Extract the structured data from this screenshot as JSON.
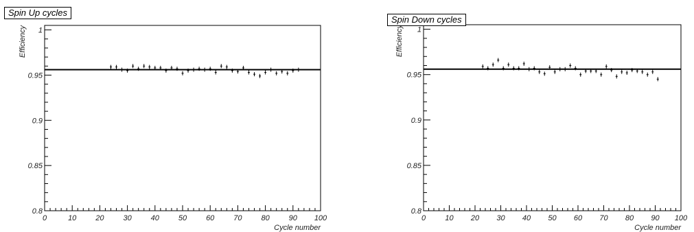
{
  "chart_data": [
    {
      "type": "scatter",
      "title": "Spin Up cycles",
      "xlabel": "Cycle number",
      "ylabel": "Efficiency",
      "xlim": [
        0,
        100
      ],
      "ylim": [
        0.8,
        1.005
      ],
      "xticks": [
        "0",
        "10",
        "20",
        "30",
        "40",
        "50",
        "60",
        "70",
        "80",
        "90",
        "100"
      ],
      "yticks": [
        "0.8",
        "0.85",
        "0.9",
        "0.95",
        "1"
      ],
      "fit_line": 0.956,
      "series": [
        {
          "x": [
            24,
            26,
            28,
            30,
            32,
            34,
            36,
            38,
            40,
            42,
            44,
            46,
            48,
            50,
            52,
            54,
            56,
            58,
            60,
            62,
            64,
            66,
            68,
            70,
            72,
            74,
            76,
            78,
            80,
            82,
            84,
            86,
            88,
            90,
            92
          ],
          "y": [
            0.959,
            0.959,
            0.956,
            0.955,
            0.96,
            0.957,
            0.96,
            0.959,
            0.958,
            0.958,
            0.955,
            0.958,
            0.957,
            0.952,
            0.955,
            0.956,
            0.957,
            0.956,
            0.957,
            0.953,
            0.96,
            0.959,
            0.955,
            0.954,
            0.958,
            0.953,
            0.951,
            0.949,
            0.953,
            0.956,
            0.952,
            0.954,
            0.952,
            0.955,
            0.956
          ]
        }
      ]
    },
    {
      "type": "scatter",
      "title": "Spin Down cycles",
      "xlabel": "Cycle number",
      "ylabel": "Efficiency",
      "xlim": [
        0,
        100
      ],
      "ylim": [
        0.8,
        1.005
      ],
      "xticks": [
        "0",
        "10",
        "20",
        "30",
        "40",
        "50",
        "60",
        "70",
        "80",
        "90",
        "100"
      ],
      "yticks": [
        "0.8",
        "0.85",
        "0.9",
        "0.95",
        "1"
      ],
      "fit_line": 0.956,
      "series": [
        {
          "x": [
            23,
            25,
            27,
            29,
            31,
            33,
            35,
            37,
            39,
            41,
            43,
            45,
            47,
            49,
            51,
            53,
            55,
            57,
            59,
            61,
            63,
            65,
            67,
            69,
            71,
            73,
            75,
            77,
            79,
            81,
            83,
            85,
            87,
            89,
            91
          ],
          "y": [
            0.959,
            0.957,
            0.961,
            0.966,
            0.957,
            0.961,
            0.957,
            0.957,
            0.962,
            0.956,
            0.957,
            0.953,
            0.951,
            0.958,
            0.953,
            0.956,
            0.956,
            0.96,
            0.957,
            0.95,
            0.954,
            0.954,
            0.954,
            0.95,
            0.959,
            0.955,
            0.948,
            0.953,
            0.952,
            0.955,
            0.954,
            0.953,
            0.95,
            0.953,
            0.945
          ]
        }
      ]
    }
  ]
}
